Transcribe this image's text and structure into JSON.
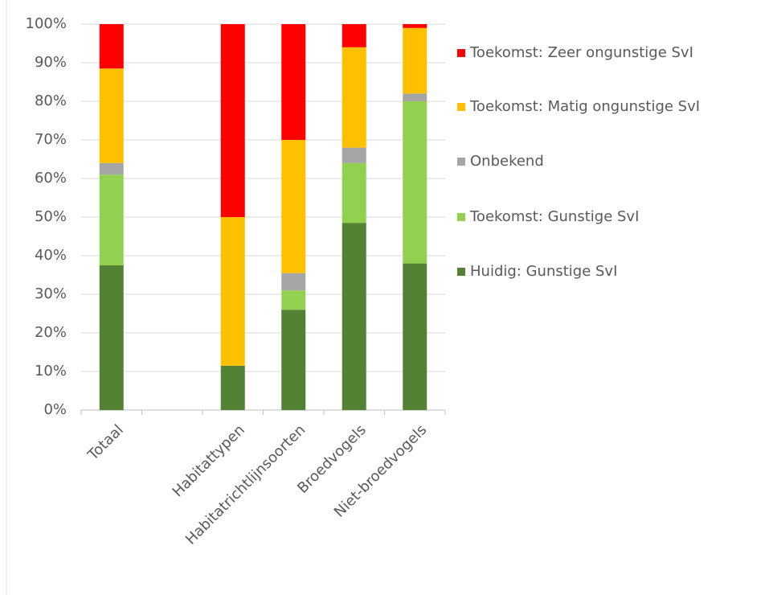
{
  "chart_data": {
    "type": "stacked_bar",
    "categories": [
      "Totaal",
      null,
      "Habitattypen",
      "Habitatrichtlijnsoorten",
      "Broedvogels",
      "Niet-broedvogels"
    ],
    "series": [
      {
        "name": "Huidig: Gunstige SvI",
        "color": "#548235",
        "values": [
          37.5,
          null,
          11.5,
          26,
          48.5,
          38
        ]
      },
      {
        "name": "Toekomst: Gunstige SvI",
        "color": "#92d050",
        "values": [
          23.5,
          null,
          0,
          5,
          15.5,
          42
        ]
      },
      {
        "name": "Onbekend",
        "color": "#a5a5a5",
        "values": [
          3,
          null,
          0,
          4.5,
          4,
          2
        ]
      },
      {
        "name": "Toekomst: Matig ongunstige SvI",
        "color": "#ffc000",
        "values": [
          24.5,
          null,
          38.5,
          34.5,
          26,
          17
        ]
      },
      {
        "name": "Toekomst: Zeer ongunstige SvI",
        "color": "#ff0000",
        "values": [
          11.5,
          null,
          50,
          30,
          6,
          1
        ]
      }
    ],
    "ylim": [
      0,
      100
    ],
    "yticks": [
      {
        "value": 0,
        "label": "0%"
      },
      {
        "value": 10,
        "label": "10%"
      },
      {
        "value": 20,
        "label": "20%"
      },
      {
        "value": 30,
        "label": "30%"
      },
      {
        "value": 40,
        "label": "40%"
      },
      {
        "value": 50,
        "label": "50%"
      },
      {
        "value": 60,
        "label": "60%"
      },
      {
        "value": 70,
        "label": "70%"
      },
      {
        "value": 80,
        "label": "80%"
      },
      {
        "value": 90,
        "label": "90%"
      },
      {
        "value": 100,
        "label": "100%"
      }
    ],
    "grid": true,
    "legend": "right"
  }
}
